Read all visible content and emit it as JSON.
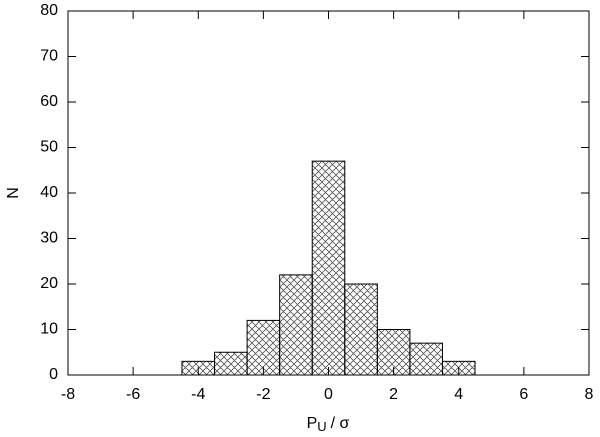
{
  "chart_data": {
    "type": "histogram",
    "xlabel_parts": [
      "P",
      "U",
      "/ σ"
    ],
    "ylabel": "N",
    "bins": [
      -4.5,
      -3.5,
      -2.5,
      -1.5,
      -0.5,
      0.5,
      1.5,
      2.5,
      3.5,
      4.5
    ],
    "values": [
      3,
      5,
      12,
      22,
      47,
      20,
      10,
      7,
      3
    ],
    "color": "#555555",
    "xlim": [
      -8,
      8
    ],
    "xticks": [
      -8,
      -6,
      -4,
      -2,
      0,
      2,
      4,
      6,
      8
    ],
    "ylim": [
      0,
      80
    ],
    "yticks": [
      0,
      10,
      20,
      30,
      40,
      50,
      60,
      70,
      80
    ]
  }
}
